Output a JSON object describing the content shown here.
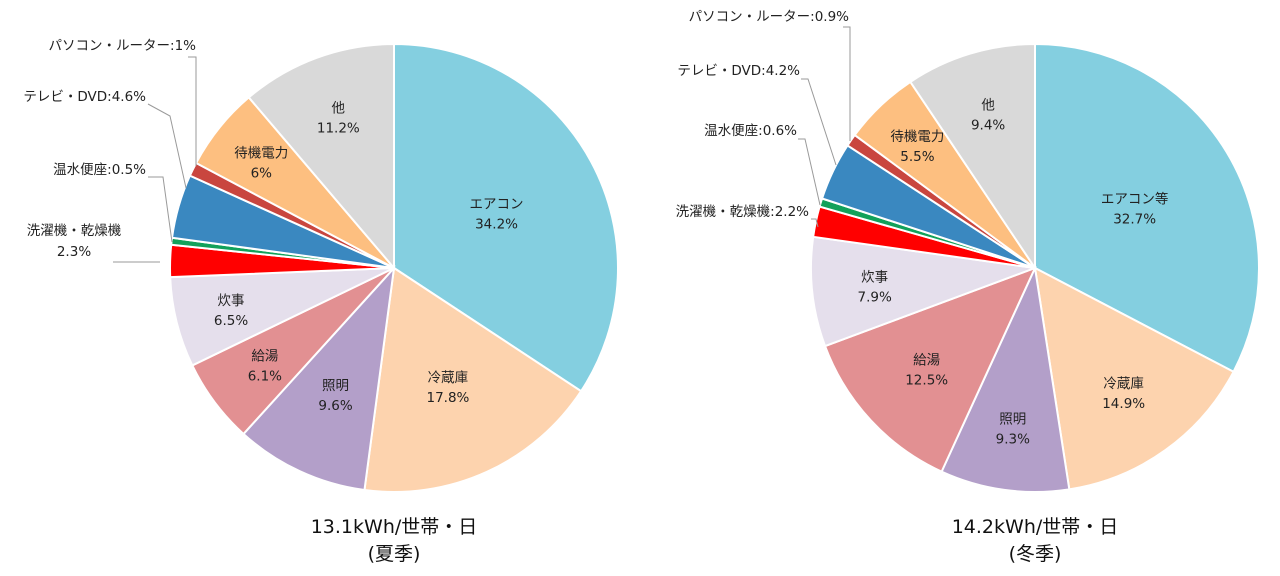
{
  "chart_data": [
    {
      "type": "pie",
      "caption_line1": "13.1kWh/世帯・日",
      "caption_line2": "(夏季)",
      "slices": [
        {
          "label": "エアコン",
          "value": 34.2,
          "display": "34.2%",
          "color": "#84cfe0"
        },
        {
          "label": "冷蔵庫",
          "value": 17.8,
          "display": "17.8%",
          "color": "#fdd3ae"
        },
        {
          "label": "照明",
          "value": 9.6,
          "display": "9.6%",
          "color": "#b39fc9"
        },
        {
          "label": "給湯",
          "value": 6.1,
          "display": "6.1%",
          "color": "#e29092"
        },
        {
          "label": "炊事",
          "value": 6.5,
          "display": "6.5%",
          "color": "#e5dfec"
        },
        {
          "label": "洗濯機・乾燥機",
          "value": 2.3,
          "display": "2.3%",
          "color": "#ff0000"
        },
        {
          "label": "温水便座",
          "value": 0.5,
          "display": "0.5%",
          "color": "#12a15a"
        },
        {
          "label": "テレビ・DVD",
          "value": 4.6,
          "display": "4.6%",
          "color": "#3a88c0"
        },
        {
          "label": "パソコン・ルーター",
          "value": 1,
          "display": "1%",
          "color": "#c9463f"
        },
        {
          "label": "待機電力",
          "value": 6,
          "display": "6%",
          "color": "#fdbf80"
        },
        {
          "label": "他",
          "value": 11.2,
          "display": "11.2%",
          "color": "#d9d9d9"
        }
      ]
    },
    {
      "type": "pie",
      "caption_line1": "14.2kWh/世帯・日",
      "caption_line2": "(冬季)",
      "slices": [
        {
          "label": "エアコン等",
          "value": 32.7,
          "display": "32.7%",
          "color": "#84cfe0"
        },
        {
          "label": "冷蔵庫",
          "value": 14.9,
          "display": "14.9%",
          "color": "#fdd3ae"
        },
        {
          "label": "照明",
          "value": 9.3,
          "display": "9.3%",
          "color": "#b39fc9"
        },
        {
          "label": "給湯",
          "value": 12.5,
          "display": "12.5%",
          "color": "#e29092"
        },
        {
          "label": "炊事",
          "value": 7.9,
          "display": "7.9%",
          "color": "#e5dfec"
        },
        {
          "label": "洗濯機・乾燥機",
          "value": 2.2,
          "display": "2.2%",
          "color": "#ff0000"
        },
        {
          "label": "温水便座",
          "value": 0.6,
          "display": "0.6%",
          "color": "#12a15a"
        },
        {
          "label": "テレビ・DVD",
          "value": 4.2,
          "display": "4.2%",
          "color": "#3a88c0"
        },
        {
          "label": "パソコン・ルーター",
          "value": 0.9,
          "display": "0.9%",
          "color": "#c9463f"
        },
        {
          "label": "待機電力",
          "value": 5.5,
          "display": "5.5%",
          "color": "#fdbf80"
        },
        {
          "label": "他",
          "value": 9.4,
          "display": "9.4%",
          "color": "#d9d9d9"
        }
      ]
    }
  ]
}
